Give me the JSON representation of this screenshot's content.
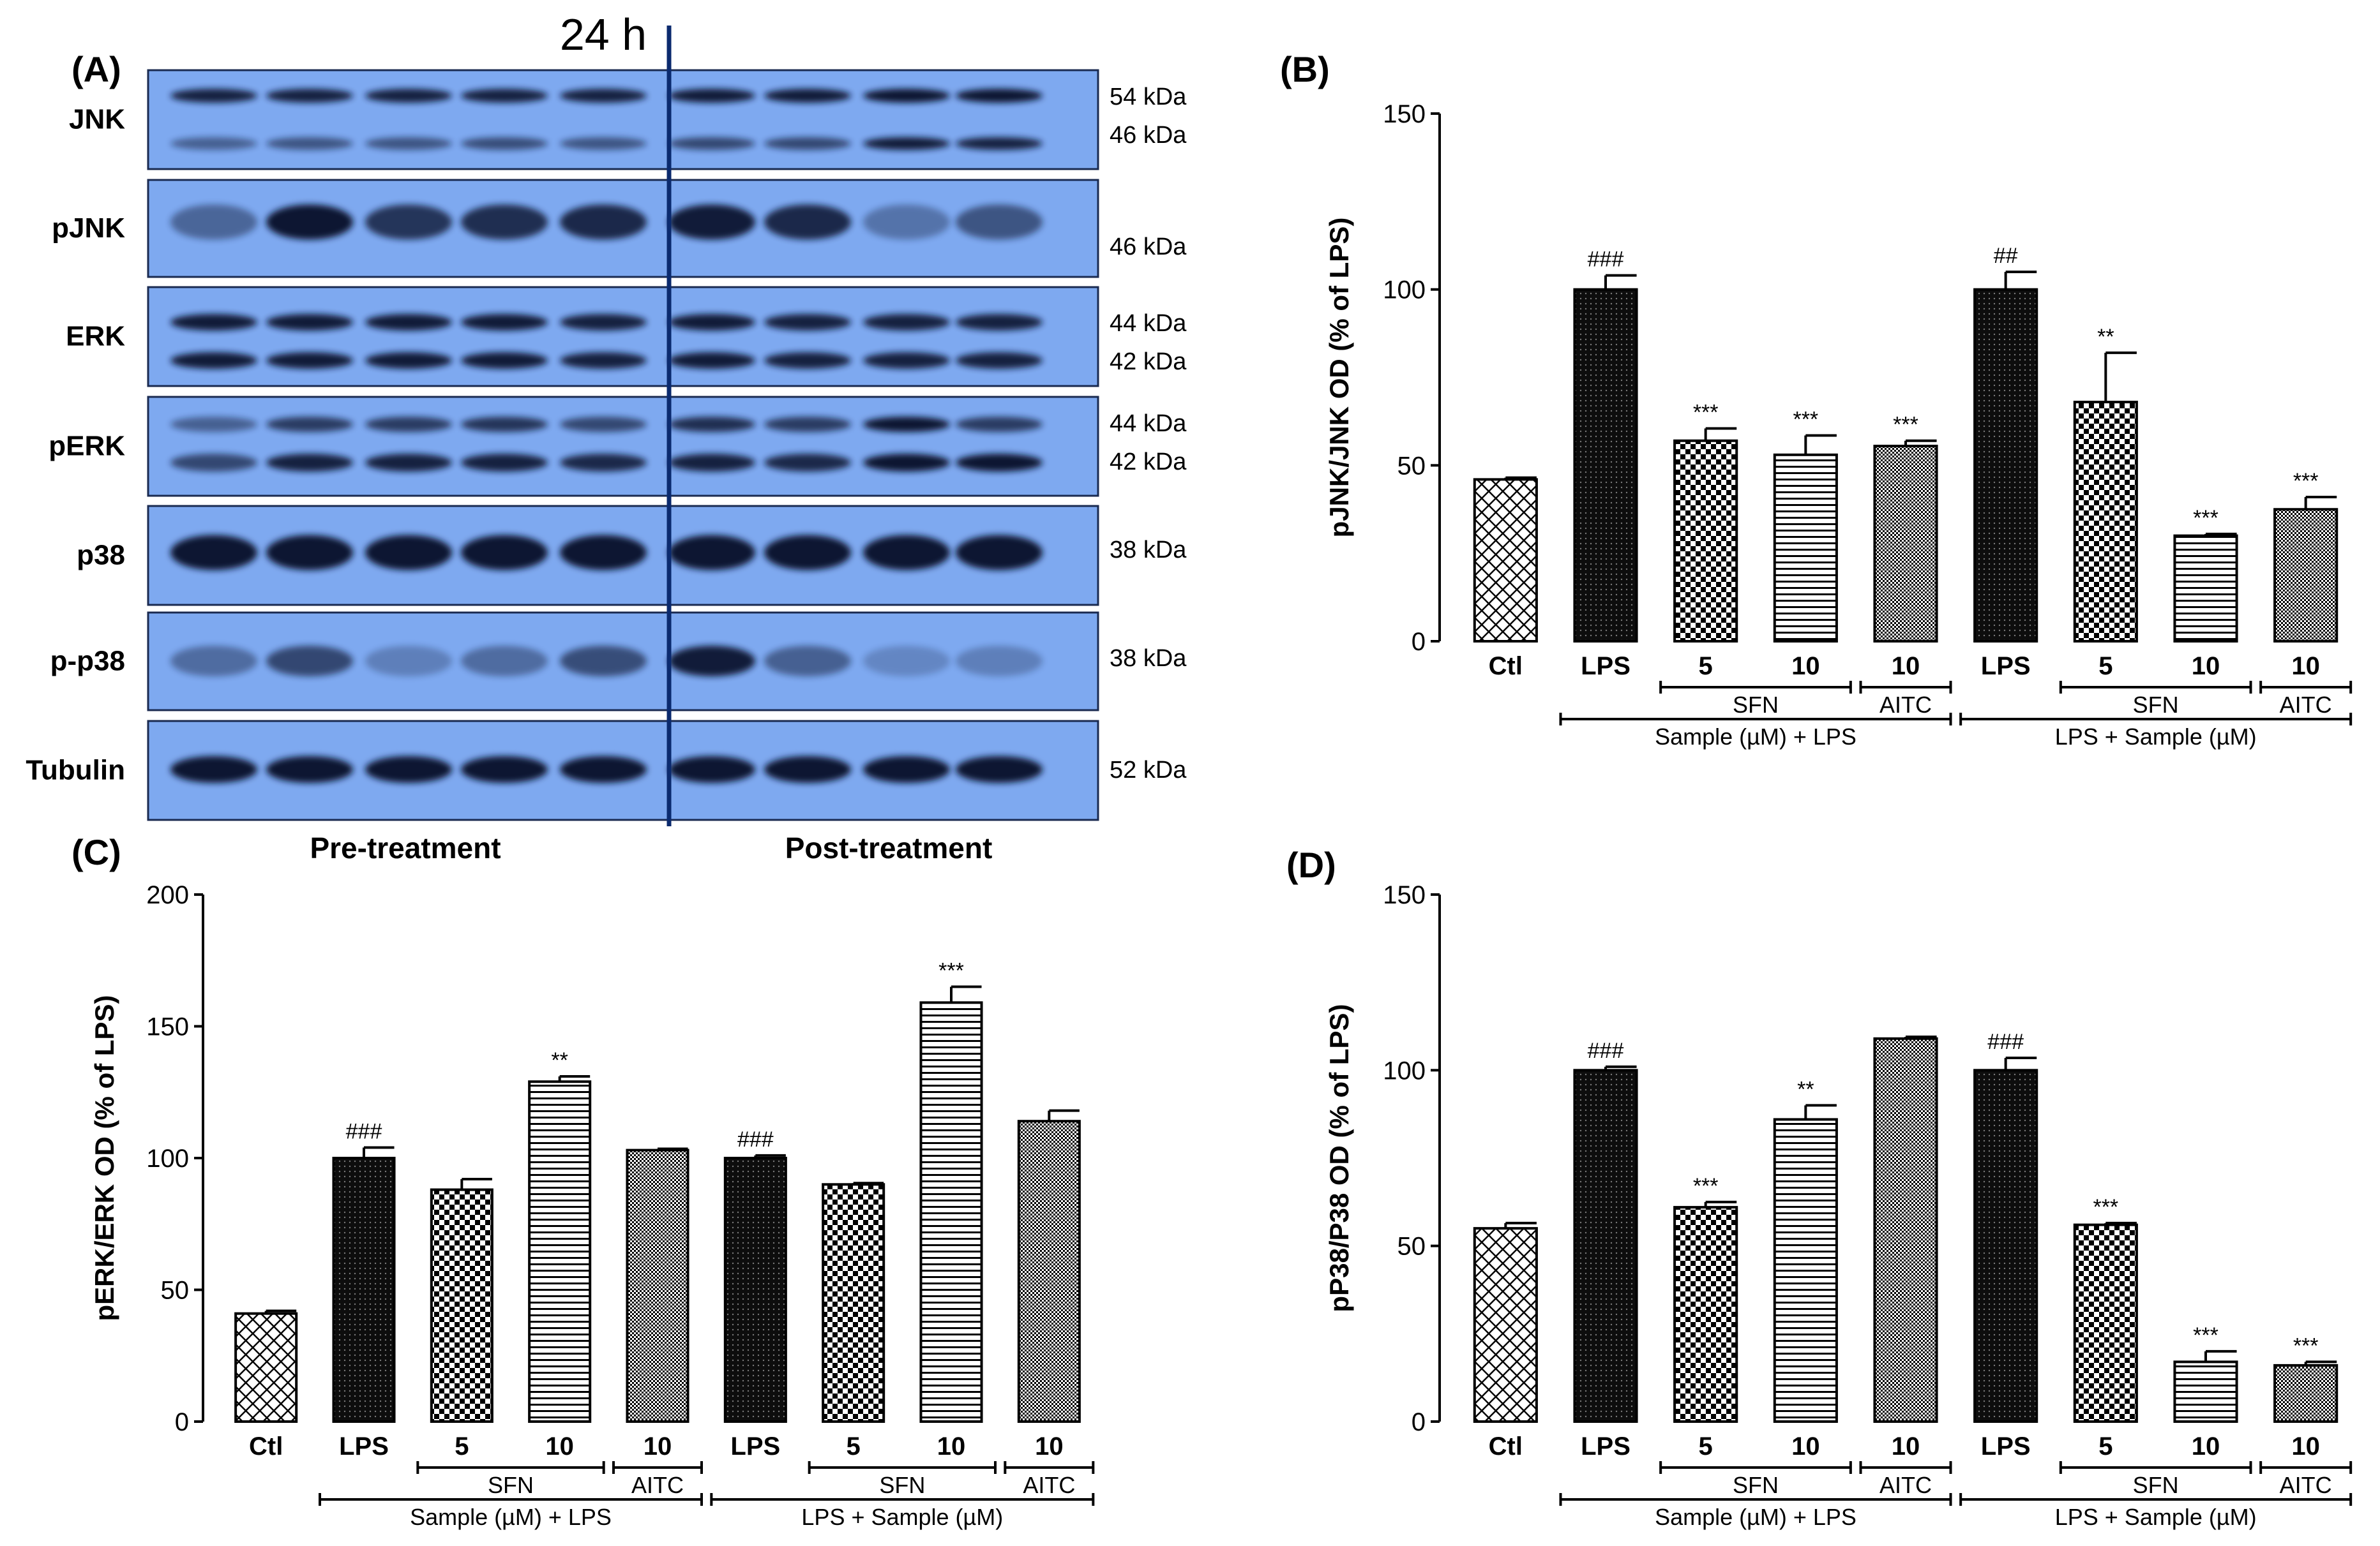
{
  "panels": {
    "A": "(A)",
    "B": "(B)",
    "C": "(C)",
    "D": "(D)"
  },
  "blot": {
    "time_label": "24 h",
    "rows": [
      {
        "protein": "JNK",
        "kda": [
          "54 kDa",
          "46 kDa"
        ]
      },
      {
        "protein": "pJNK",
        "kda": [
          "46 kDa"
        ]
      },
      {
        "protein": "ERK",
        "kda": [
          "44 kDa",
          "42 kDa"
        ]
      },
      {
        "protein": "pERK",
        "kda": [
          "44 kDa",
          "42 kDa"
        ]
      },
      {
        "protein": "p38",
        "kda": [
          "38 kDa"
        ]
      },
      {
        "protein": "p-p38",
        "kda": [
          "38 kDa"
        ]
      },
      {
        "protein": "Tubulin",
        "kda": [
          "52 kDa"
        ]
      }
    ],
    "pre_label": "Pre-treatment",
    "post_label": "Post-treatment",
    "colors": {
      "membrane": "#7ea9f0",
      "band": "#0a1630",
      "divider": "#0b2a6e"
    }
  },
  "chart_data": [
    {
      "panel": "B",
      "type": "bar",
      "ylabel": "pJNK/JNK OD  (% of LPS)",
      "ylim": [
        0,
        150
      ],
      "yticks": [
        0,
        50,
        100,
        150
      ],
      "categories": [
        "Ctl",
        "LPS",
        "5",
        "10",
        "10",
        "LPS",
        "5",
        "10",
        "10"
      ],
      "values": [
        46,
        100,
        57,
        53,
        55.5,
        100,
        68,
        30,
        37.5
      ],
      "errors": [
        0.5,
        4,
        3.5,
        5.5,
        1.5,
        5,
        14,
        0.5,
        3.5
      ],
      "significance": [
        "",
        "###",
        "***",
        "***",
        "***",
        "##",
        "**",
        "***",
        "***"
      ],
      "patterns": [
        "cross",
        "dots",
        "check",
        "hlines",
        "fine",
        "dots",
        "check",
        "hlines",
        "fine"
      ],
      "groups": {
        "sfn": "SFN",
        "aitc": "AITC",
        "pre": "Sample (µM) + LPS",
        "post": "LPS + Sample (µM)"
      }
    },
    {
      "panel": "C",
      "type": "bar",
      "ylabel": "pERK/ERK OD  (% of LPS)",
      "ylim": [
        0,
        200
      ],
      "yticks": [
        0,
        50,
        100,
        150,
        200
      ],
      "categories": [
        "Ctl",
        "LPS",
        "5",
        "10",
        "10",
        "LPS",
        "5",
        "10",
        "10"
      ],
      "values": [
        41,
        100,
        88,
        129,
        103,
        100,
        90,
        159,
        114
      ],
      "errors": [
        1,
        4,
        4,
        2,
        0.5,
        1,
        0.5,
        6,
        4
      ],
      "significance": [
        "",
        "###",
        "",
        "**",
        "",
        "###",
        "",
        "***",
        ""
      ],
      "patterns": [
        "cross",
        "dots",
        "check",
        "hlines",
        "fine",
        "dots",
        "check",
        "hlines",
        "fine"
      ],
      "groups": {
        "sfn": "SFN",
        "aitc": "AITC",
        "pre": "Sample (µM) + LPS",
        "post": "LPS + Sample (µM)"
      }
    },
    {
      "panel": "D",
      "type": "bar",
      "ylabel": "pP38/P38 OD  (% of LPS)",
      "ylim": [
        0,
        150
      ],
      "yticks": [
        0,
        50,
        100,
        150
      ],
      "categories": [
        "Ctl",
        "LPS",
        "5",
        "10",
        "10",
        "LPS",
        "5",
        "10",
        "10"
      ],
      "values": [
        55,
        100,
        61,
        86,
        109,
        100,
        56,
        17,
        16
      ],
      "errors": [
        1.5,
        1,
        1.5,
        4,
        0.5,
        3.5,
        0.5,
        3,
        1
      ],
      "significance": [
        "",
        "###",
        "***",
        "**",
        "",
        "###",
        "***",
        "***",
        "***"
      ],
      "patterns": [
        "cross",
        "dots",
        "check",
        "hlines",
        "fine",
        "dots",
        "check",
        "hlines",
        "fine"
      ],
      "groups": {
        "sfn": "SFN",
        "aitc": "AITC",
        "pre": "Sample (µM) + LPS",
        "post": "LPS + Sample (µM)"
      }
    }
  ]
}
